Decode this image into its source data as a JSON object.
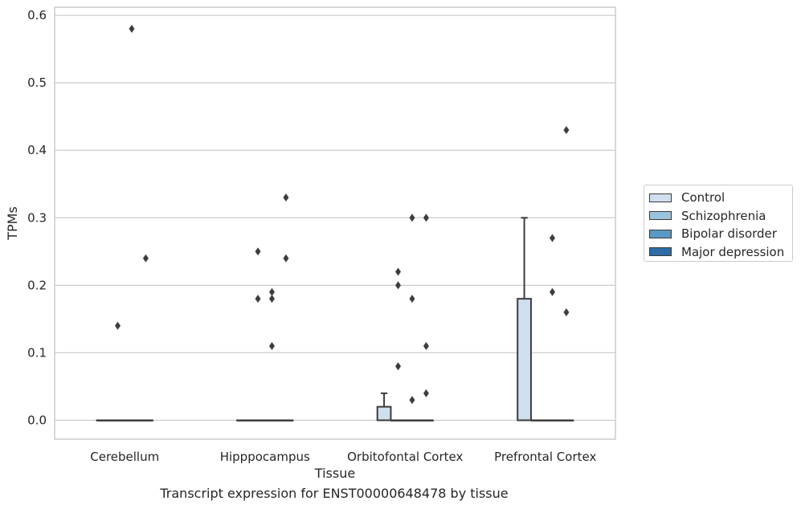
{
  "chart_data": {
    "type": "box",
    "title": "Transcript expression for ENST00000648478 by tissue",
    "xlabel": "Tissue",
    "ylabel": "TPMs",
    "ylim": [
      -0.028,
      0.612
    ],
    "yticks": [
      "0.0",
      "0.1",
      "0.2",
      "0.3",
      "0.4",
      "0.5",
      "0.6"
    ],
    "grid": "horizontal",
    "legend_position": "right",
    "categories": [
      "Cerebellum",
      "Hipppocampus",
      "Orbitofontal Cortex",
      "Prefrontal Cortex"
    ],
    "series": [
      {
        "name": "Control",
        "color": "#d0dff0",
        "boxes": [
          {
            "category": "Cerebellum",
            "q1": 0,
            "median": 0,
            "q3": 0,
            "whisker_low": 0,
            "whisker_high": 0,
            "outliers": []
          },
          {
            "category": "Hipppocampus",
            "q1": 0,
            "median": 0,
            "q3": 0,
            "whisker_low": 0,
            "whisker_high": 0,
            "outliers": []
          },
          {
            "category": "Orbitofontal Cortex",
            "q1": 0,
            "median": 0,
            "q3": 0.02,
            "whisker_low": 0,
            "whisker_high": 0.04,
            "outliers": []
          },
          {
            "category": "Prefrontal Cortex",
            "q1": 0,
            "median": 0,
            "q3": 0.18,
            "whisker_low": 0,
            "whisker_high": 0.3,
            "outliers": []
          }
        ]
      },
      {
        "name": "Schizophrenia",
        "color": "#9cc3dd",
        "boxes": [
          {
            "category": "Cerebellum",
            "q1": 0,
            "median": 0,
            "q3": 0,
            "whisker_low": 0,
            "whisker_high": 0,
            "outliers": [
              0.14
            ]
          },
          {
            "category": "Hipppocampus",
            "q1": 0,
            "median": 0,
            "q3": 0,
            "whisker_low": 0,
            "whisker_high": 0,
            "outliers": [
              0.25,
              0.18
            ]
          },
          {
            "category": "Orbitofontal Cortex",
            "q1": 0,
            "median": 0,
            "q3": 0,
            "whisker_low": 0,
            "whisker_high": 0,
            "outliers": [
              0.22,
              0.2,
              0.08
            ]
          },
          {
            "category": "Prefrontal Cortex",
            "q1": 0,
            "median": 0,
            "q3": 0,
            "whisker_low": 0,
            "whisker_high": 0,
            "outliers": []
          }
        ]
      },
      {
        "name": "Bipolar disorder",
        "color": "#5a98c5",
        "boxes": [
          {
            "category": "Cerebellum",
            "q1": 0,
            "median": 0,
            "q3": 0,
            "whisker_low": 0,
            "whisker_high": 0,
            "outliers": [
              0.58
            ]
          },
          {
            "category": "Hipppocampus",
            "q1": 0,
            "median": 0,
            "q3": 0,
            "whisker_low": 0,
            "whisker_high": 0,
            "outliers": [
              0.19,
              0.18,
              0.11
            ]
          },
          {
            "category": "Orbitofontal Cortex",
            "q1": 0,
            "median": 0,
            "q3": 0,
            "whisker_low": 0,
            "whisker_high": 0,
            "outliers": [
              0.3,
              0.18,
              0.03
            ]
          },
          {
            "category": "Prefrontal Cortex",
            "q1": 0,
            "median": 0,
            "q3": 0,
            "whisker_low": 0,
            "whisker_high": 0,
            "outliers": [
              0.27,
              0.19
            ]
          }
        ]
      },
      {
        "name": "Major depression",
        "color": "#2d6ca6",
        "boxes": [
          {
            "category": "Cerebellum",
            "q1": 0,
            "median": 0,
            "q3": 0,
            "whisker_low": 0,
            "whisker_high": 0,
            "outliers": [
              0.24
            ]
          },
          {
            "category": "Hipppocampus",
            "q1": 0,
            "median": 0,
            "q3": 0,
            "whisker_low": 0,
            "whisker_high": 0,
            "outliers": [
              0.33,
              0.24
            ]
          },
          {
            "category": "Orbitofontal Cortex",
            "q1": 0,
            "median": 0,
            "q3": 0,
            "whisker_low": 0,
            "whisker_high": 0,
            "outliers": [
              0.3,
              0.11,
              0.04
            ]
          },
          {
            "category": "Prefrontal Cortex",
            "q1": 0,
            "median": 0,
            "q3": 0,
            "whisker_low": 0,
            "whisker_high": 0,
            "outliers": [
              0.43,
              0.16
            ]
          }
        ]
      }
    ]
  }
}
